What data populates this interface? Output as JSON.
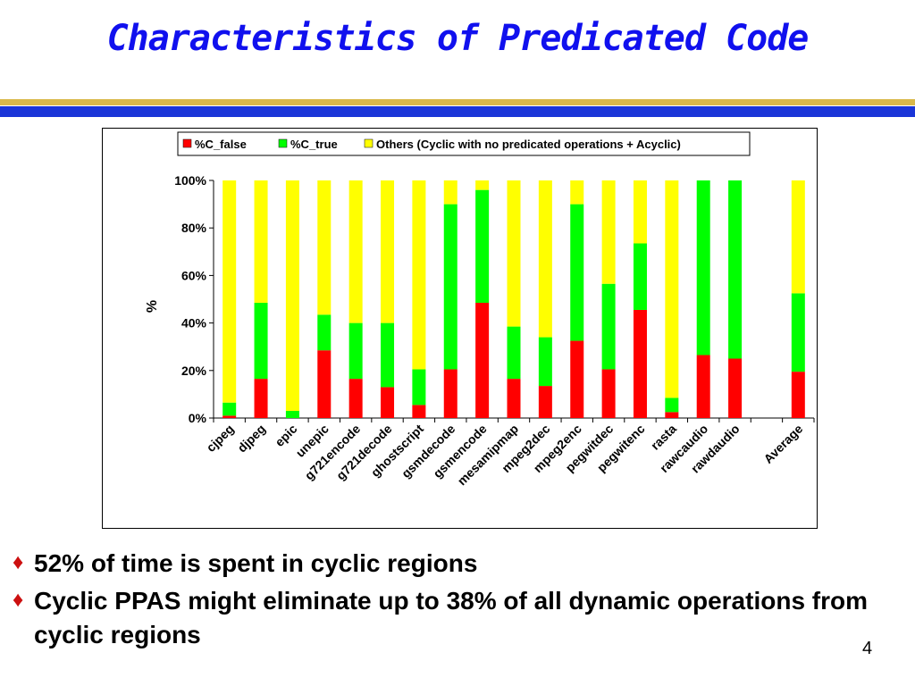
{
  "slide": {
    "title": "Characteristics of Predicated Code",
    "bullets": [
      "52% of time is spent in cyclic regions",
      "Cyclic PPAS might eliminate up to 38% of all dynamic operations from cyclic regions"
    ],
    "page_number": "4",
    "bullet_color": "#cc1010",
    "title_color": "#1010ee"
  },
  "chart_data": {
    "type": "bar",
    "stacked": true,
    "categories": [
      "cjpeg",
      "djpeg",
      "epic",
      "unepic",
      "g721encode",
      "g721decode",
      "ghostscript",
      "gsmdecode",
      "gsmencode",
      "mesamipmap",
      "mpeg2dec",
      "mpeg2enc",
      "pegwitdec",
      "pegwitenc",
      "rasta",
      "rawcaudio",
      "rawdaudio",
      "",
      "Average"
    ],
    "series": [
      {
        "name": "%C_false",
        "color": "#ff0000",
        "values": [
          1,
          16.5,
          0,
          28.5,
          16.5,
          13,
          5.5,
          20.5,
          48.5,
          16.5,
          13.5,
          32.5,
          20.5,
          45.5,
          2.5,
          26.5,
          25,
          null,
          19.5
        ]
      },
      {
        "name": "%C_true",
        "color": "#00ff00",
        "values": [
          5.5,
          32,
          3,
          15,
          23.5,
          27,
          15,
          69.5,
          47.5,
          22,
          20.5,
          57.5,
          36,
          28,
          6,
          73.5,
          75,
          null,
          33
        ]
      },
      {
        "name": "Others (Cyclic with no predicated operations + Acyclic)",
        "color": "#ffff00",
        "values": [
          93.5,
          51.5,
          97,
          56.5,
          60,
          60,
          79.5,
          10,
          4,
          61.5,
          66,
          10,
          43.5,
          26.5,
          91.5,
          0,
          0,
          null,
          47.5
        ]
      }
    ],
    "ylabel": "%",
    "xlabel": "",
    "ylim": [
      0,
      100
    ],
    "yticks": [
      "0%",
      "20%",
      "40%",
      "60%",
      "80%",
      "100%"
    ],
    "legend_position": "top",
    "grid": false
  }
}
